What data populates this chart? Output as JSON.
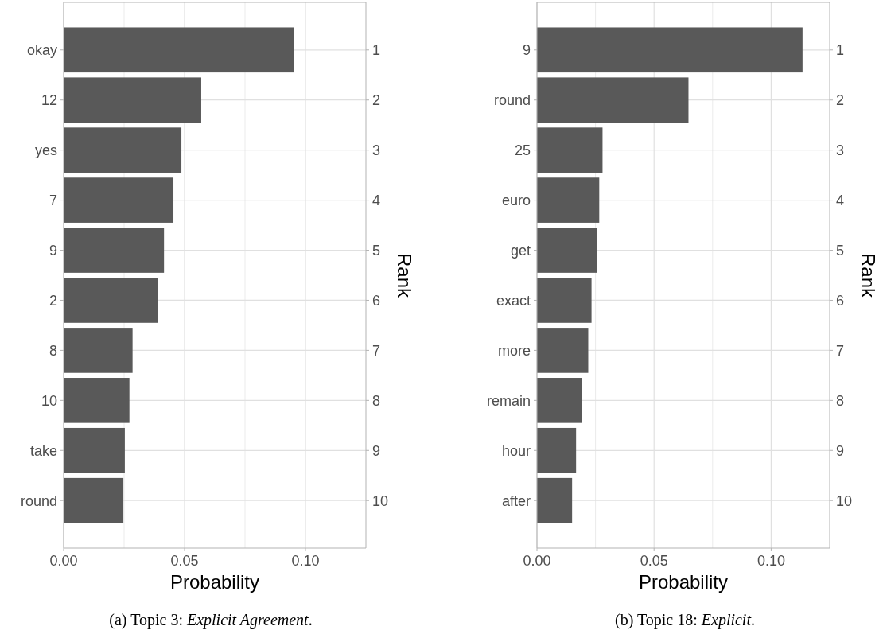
{
  "chart_data": [
    {
      "type": "bar",
      "orientation": "horizontal",
      "categories": [
        "okay",
        "12",
        "yes",
        "7",
        "9",
        "2",
        "8",
        "10",
        "take",
        "round"
      ],
      "y2_categories": [
        "1",
        "2",
        "3",
        "4",
        "5",
        "6",
        "7",
        "8",
        "9",
        "10"
      ],
      "values": [
        0.0951,
        0.0569,
        0.0487,
        0.0454,
        0.0415,
        0.0391,
        0.0285,
        0.0272,
        0.0253,
        0.0247
      ],
      "color": "#595959",
      "xlim": [
        0,
        0.125
      ],
      "xticks": [
        {
          "value": 0,
          "label": "0.00"
        },
        {
          "value": 0.025,
          "label": null
        },
        {
          "value": 0.05,
          "label": "0.05"
        },
        {
          "value": 0.075,
          "label": null
        },
        {
          "value": 0.1,
          "label": "0.10"
        }
      ],
      "xlabel": "Probability",
      "y2label": "Rank",
      "grid": true,
      "annotations": [
        "(a) Topic 3: Explicit Agreement."
      ]
    },
    {
      "type": "bar",
      "orientation": "horizontal",
      "categories": [
        "9",
        "round",
        "25",
        "euro",
        "get",
        "exact",
        "more",
        "remain",
        "hour",
        "after"
      ],
      "y2_categories": [
        "1",
        "2",
        "3",
        "4",
        "5",
        "6",
        "7",
        "8",
        "9",
        "10"
      ],
      "values": [
        0.1134,
        0.0647,
        0.028,
        0.0266,
        0.0255,
        0.0233,
        0.0219,
        0.0191,
        0.0167,
        0.015
      ],
      "color": "#595959",
      "xlim": [
        0,
        0.125
      ],
      "xticks": [
        {
          "value": 0,
          "label": "0.00"
        },
        {
          "value": 0.025,
          "label": null
        },
        {
          "value": 0.05,
          "label": "0.05"
        },
        {
          "value": 0.075,
          "label": null
        },
        {
          "value": 0.1,
          "label": "0.10"
        }
      ],
      "xlabel": "Probability",
      "y2label": "Rank",
      "grid": true,
      "annotations": [
        "(b) Topic 18: Explicit."
      ]
    }
  ]
}
